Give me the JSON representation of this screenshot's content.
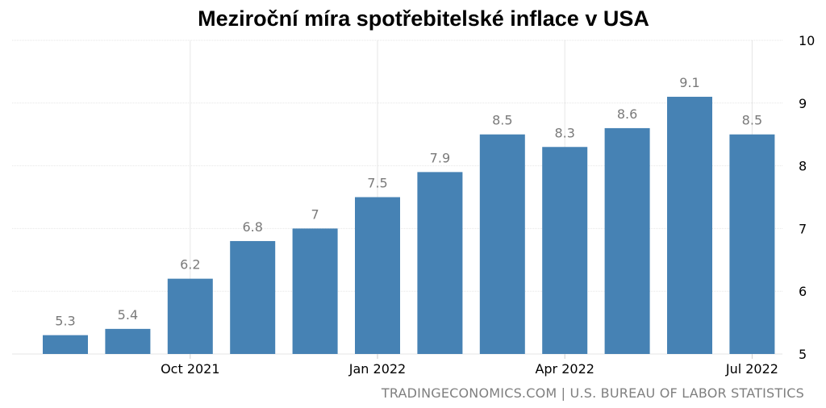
{
  "title": "Meziroční míra spotřebitelské inflace v USA",
  "source": "TRADINGECONOMICS.COM | U.S. BUREAU OF LABOR STATISTICS",
  "colors": {
    "bar": "#4682b4",
    "label": "#7a7a7a",
    "grid": "#e6e6e6",
    "axis_text": "#000000"
  },
  "chart_data": {
    "type": "bar",
    "title": "Meziroční míra spotřebitelské inflace v USA",
    "xlabel": "",
    "ylabel": "",
    "ylim": [
      5,
      10
    ],
    "grid": true,
    "y_axis_side": "right",
    "yticks": [
      "5",
      "6",
      "7",
      "8",
      "9",
      "10"
    ],
    "xtick_labels": [
      {
        "index": 2,
        "label": "Oct 2021"
      },
      {
        "index": 5,
        "label": "Jan 2022"
      },
      {
        "index": 8,
        "label": "Apr 2022"
      },
      {
        "index": 11,
        "label": "Jul 2022"
      }
    ],
    "values": [
      5.3,
      5.4,
      6.2,
      6.8,
      7,
      7.5,
      7.9,
      8.5,
      8.3,
      8.6,
      9.1,
      8.5
    ],
    "data_labels": [
      "5.3",
      "5.4",
      "6.2",
      "6.8",
      "7",
      "7.5",
      "7.9",
      "8.5",
      "8.3",
      "8.6",
      "9.1",
      "8.5"
    ]
  }
}
